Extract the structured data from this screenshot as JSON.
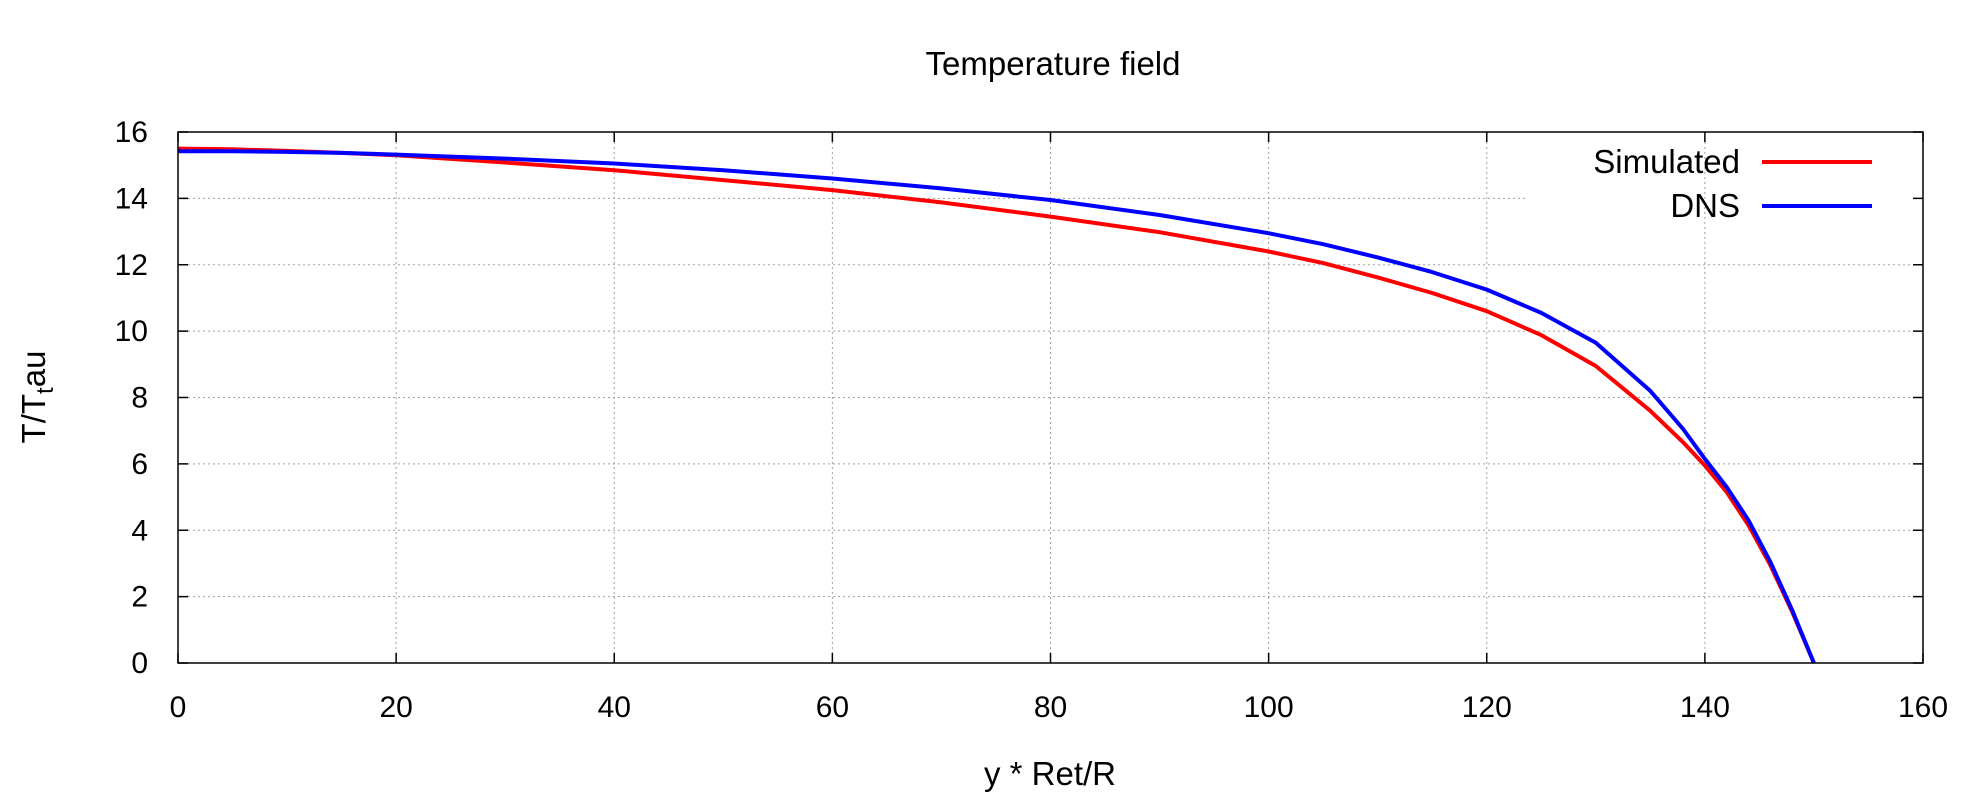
{
  "chart_data": {
    "type": "line",
    "title": "Temperature field",
    "xlabel": "y * Ret/R",
    "ylabel": {
      "main": "T/T",
      "sub": "t",
      "tail": "au"
    },
    "xlim": [
      0,
      160
    ],
    "ylim": [
      0,
      16
    ],
    "xticks": [
      0,
      20,
      40,
      60,
      80,
      100,
      120,
      140,
      160
    ],
    "yticks": [
      0,
      2,
      4,
      6,
      8,
      10,
      12,
      14,
      16
    ],
    "grid": true,
    "legend_position": "top-right",
    "series": [
      {
        "name": "Simulated",
        "color": "#ff0000",
        "x": [
          0,
          5,
          10,
          15,
          20,
          30,
          40,
          50,
          60,
          70,
          80,
          90,
          100,
          105,
          110,
          115,
          120,
          125,
          130,
          135,
          138,
          140,
          142,
          144,
          146,
          148,
          150
        ],
        "y": [
          15.5,
          15.48,
          15.43,
          15.37,
          15.3,
          15.08,
          14.85,
          14.55,
          14.25,
          13.88,
          13.45,
          12.98,
          12.4,
          12.05,
          11.62,
          11.15,
          10.6,
          9.88,
          8.95,
          7.6,
          6.65,
          5.95,
          5.15,
          4.15,
          2.95,
          1.55,
          0
        ]
      },
      {
        "name": "DNS",
        "color": "#0000ff",
        "x": [
          0,
          5,
          10,
          15,
          20,
          30,
          40,
          50,
          60,
          70,
          80,
          90,
          100,
          105,
          110,
          115,
          120,
          125,
          130,
          135,
          138,
          140,
          142,
          144,
          146,
          148,
          150
        ],
        "y": [
          15.42,
          15.42,
          15.4,
          15.37,
          15.32,
          15.2,
          15.05,
          14.85,
          14.6,
          14.3,
          13.95,
          13.5,
          12.95,
          12.62,
          12.22,
          11.78,
          11.25,
          10.55,
          9.65,
          8.2,
          7.05,
          6.15,
          5.3,
          4.3,
          3.05,
          1.6,
          0
        ]
      }
    ]
  }
}
